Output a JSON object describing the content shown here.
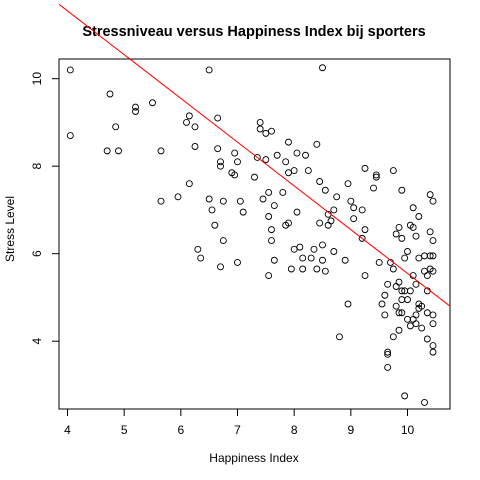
{
  "chart_data": {
    "type": "scatter",
    "title": "Stressniveau versus Happiness Index bij sporters",
    "xlabel": "Happiness Index",
    "ylabel": "Stress Level",
    "xlim": [
      3.85,
      10.75
    ],
    "ylim": [
      2.45,
      10.45
    ],
    "xticks": [
      4,
      5,
      6,
      7,
      8,
      9,
      10
    ],
    "yticks": [
      4,
      6,
      8,
      10
    ],
    "grid": false,
    "fit_line": {
      "color": "#ff0000",
      "intercept": 15.55,
      "slope": -1.0
    },
    "points": [
      [
        4.05,
        10.2
      ],
      [
        4.05,
        8.7
      ],
      [
        4.75,
        9.65
      ],
      [
        4.7,
        8.35
      ],
      [
        4.85,
        8.9
      ],
      [
        4.9,
        8.35
      ],
      [
        5.2,
        9.35
      ],
      [
        5.2,
        9.25
      ],
      [
        5.5,
        9.45
      ],
      [
        5.65,
        8.35
      ],
      [
        5.65,
        7.2
      ],
      [
        5.95,
        7.3
      ],
      [
        6.1,
        9.0
      ],
      [
        6.15,
        9.15
      ],
      [
        6.15,
        7.6
      ],
      [
        6.25,
        8.9
      ],
      [
        6.25,
        8.45
      ],
      [
        6.3,
        6.1
      ],
      [
        6.35,
        5.9
      ],
      [
        6.5,
        10.2
      ],
      [
        6.5,
        7.25
      ],
      [
        6.55,
        7.0
      ],
      [
        6.6,
        6.65
      ],
      [
        6.65,
        9.1
      ],
      [
        6.65,
        8.4
      ],
      [
        6.7,
        8.0
      ],
      [
        6.7,
        8.1
      ],
      [
        6.75,
        6.3
      ],
      [
        6.75,
        7.2
      ],
      [
        6.7,
        5.7
      ],
      [
        6.9,
        7.85
      ],
      [
        6.95,
        8.3
      ],
      [
        6.95,
        7.8
      ],
      [
        7.0,
        8.1
      ],
      [
        7.0,
        5.8
      ],
      [
        7.05,
        7.2
      ],
      [
        7.1,
        6.95
      ],
      [
        7.3,
        7.75
      ],
      [
        7.35,
        8.2
      ],
      [
        7.4,
        9.0
      ],
      [
        7.4,
        8.85
      ],
      [
        7.45,
        7.25
      ],
      [
        7.5,
        8.75
      ],
      [
        7.5,
        8.15
      ],
      [
        7.55,
        7.4
      ],
      [
        7.6,
        8.8
      ],
      [
        7.55,
        6.85
      ],
      [
        7.55,
        5.5
      ],
      [
        7.6,
        6.55
      ],
      [
        7.6,
        6.3
      ],
      [
        7.65,
        7.1
      ],
      [
        7.65,
        5.85
      ],
      [
        7.7,
        8.25
      ],
      [
        7.8,
        7.4
      ],
      [
        7.85,
        8.1
      ],
      [
        7.85,
        6.65
      ],
      [
        7.9,
        8.55
      ],
      [
        7.9,
        7.85
      ],
      [
        7.9,
        6.7
      ],
      [
        7.95,
        5.65
      ],
      [
        8.0,
        7.9
      ],
      [
        8.0,
        6.1
      ],
      [
        8.05,
        8.3
      ],
      [
        8.05,
        6.95
      ],
      [
        8.1,
        6.15
      ],
      [
        8.15,
        5.65
      ],
      [
        8.15,
        5.9
      ],
      [
        8.2,
        8.25
      ],
      [
        8.25,
        7.9
      ],
      [
        8.3,
        5.9
      ],
      [
        8.35,
        6.1
      ],
      [
        8.4,
        8.5
      ],
      [
        8.4,
        5.65
      ],
      [
        8.45,
        7.65
      ],
      [
        8.45,
        6.7
      ],
      [
        8.5,
        10.25
      ],
      [
        8.5,
        6.2
      ],
      [
        8.5,
        5.85
      ],
      [
        8.55,
        7.45
      ],
      [
        8.55,
        5.6
      ],
      [
        8.6,
        6.9
      ],
      [
        8.6,
        6.65
      ],
      [
        8.65,
        6.75
      ],
      [
        8.7,
        7.0
      ],
      [
        8.7,
        6.05
      ],
      [
        8.75,
        7.3
      ],
      [
        8.8,
        4.1
      ],
      [
        8.9,
        5.85
      ],
      [
        8.95,
        7.6
      ],
      [
        8.95,
        4.85
      ],
      [
        9.0,
        7.2
      ],
      [
        9.05,
        6.8
      ],
      [
        9.05,
        7.05
      ],
      [
        9.2,
        7.0
      ],
      [
        9.2,
        6.35
      ],
      [
        9.25,
        6.55
      ],
      [
        9.25,
        5.5
      ],
      [
        9.25,
        7.95
      ],
      [
        9.4,
        7.5
      ],
      [
        9.45,
        7.8
      ],
      [
        9.45,
        7.75
      ],
      [
        9.5,
        5.8
      ],
      [
        9.55,
        4.85
      ],
      [
        9.6,
        4.6
      ],
      [
        9.6,
        5.05
      ],
      [
        9.65,
        5.3
      ],
      [
        9.65,
        3.75
      ],
      [
        9.65,
        3.7
      ],
      [
        9.65,
        3.4
      ],
      [
        9.7,
        5.8
      ],
      [
        9.75,
        7.9
      ],
      [
        9.75,
        5.65
      ],
      [
        9.75,
        4.1
      ],
      [
        9.8,
        6.45
      ],
      [
        9.8,
        5.25
      ],
      [
        9.8,
        4.8
      ],
      [
        9.85,
        6.6
      ],
      [
        9.85,
        5.35
      ],
      [
        9.85,
        4.65
      ],
      [
        9.85,
        4.25
      ],
      [
        9.9,
        7.45
      ],
      [
        9.9,
        6.35
      ],
      [
        9.9,
        5.15
      ],
      [
        9.9,
        4.95
      ],
      [
        9.9,
        4.65
      ],
      [
        9.95,
        5.9
      ],
      [
        9.95,
        5.15
      ],
      [
        9.95,
        2.75
      ],
      [
        10.0,
        6.05
      ],
      [
        10.0,
        4.95
      ],
      [
        10.0,
        4.5
      ],
      [
        10.05,
        6.65
      ],
      [
        10.05,
        5.15
      ],
      [
        10.05,
        4.35
      ],
      [
        10.1,
        7.05
      ],
      [
        10.1,
        6.6
      ],
      [
        10.1,
        5.5
      ],
      [
        10.1,
        4.5
      ],
      [
        10.15,
        6.4
      ],
      [
        10.15,
        5.3
      ],
      [
        10.15,
        4.6
      ],
      [
        10.15,
        4.4
      ],
      [
        10.2,
        6.85
      ],
      [
        10.2,
        5.9
      ],
      [
        10.2,
        4.85
      ],
      [
        10.2,
        4.75
      ],
      [
        10.25,
        4.8
      ],
      [
        10.25,
        4.3
      ],
      [
        10.3,
        5.6
      ],
      [
        10.3,
        5.95
      ],
      [
        10.3,
        2.6
      ],
      [
        10.35,
        5.5
      ],
      [
        10.35,
        5.15
      ],
      [
        10.35,
        4.65
      ],
      [
        10.35,
        4.05
      ],
      [
        10.4,
        7.35
      ],
      [
        10.4,
        6.5
      ],
      [
        10.4,
        5.95
      ],
      [
        10.4,
        5.65
      ],
      [
        10.45,
        7.2
      ],
      [
        10.45,
        6.3
      ],
      [
        10.45,
        5.95
      ],
      [
        10.45,
        5.6
      ],
      [
        10.45,
        4.6
      ],
      [
        10.45,
        4.4
      ],
      [
        10.45,
        3.9
      ],
      [
        10.45,
        3.75
      ]
    ]
  }
}
